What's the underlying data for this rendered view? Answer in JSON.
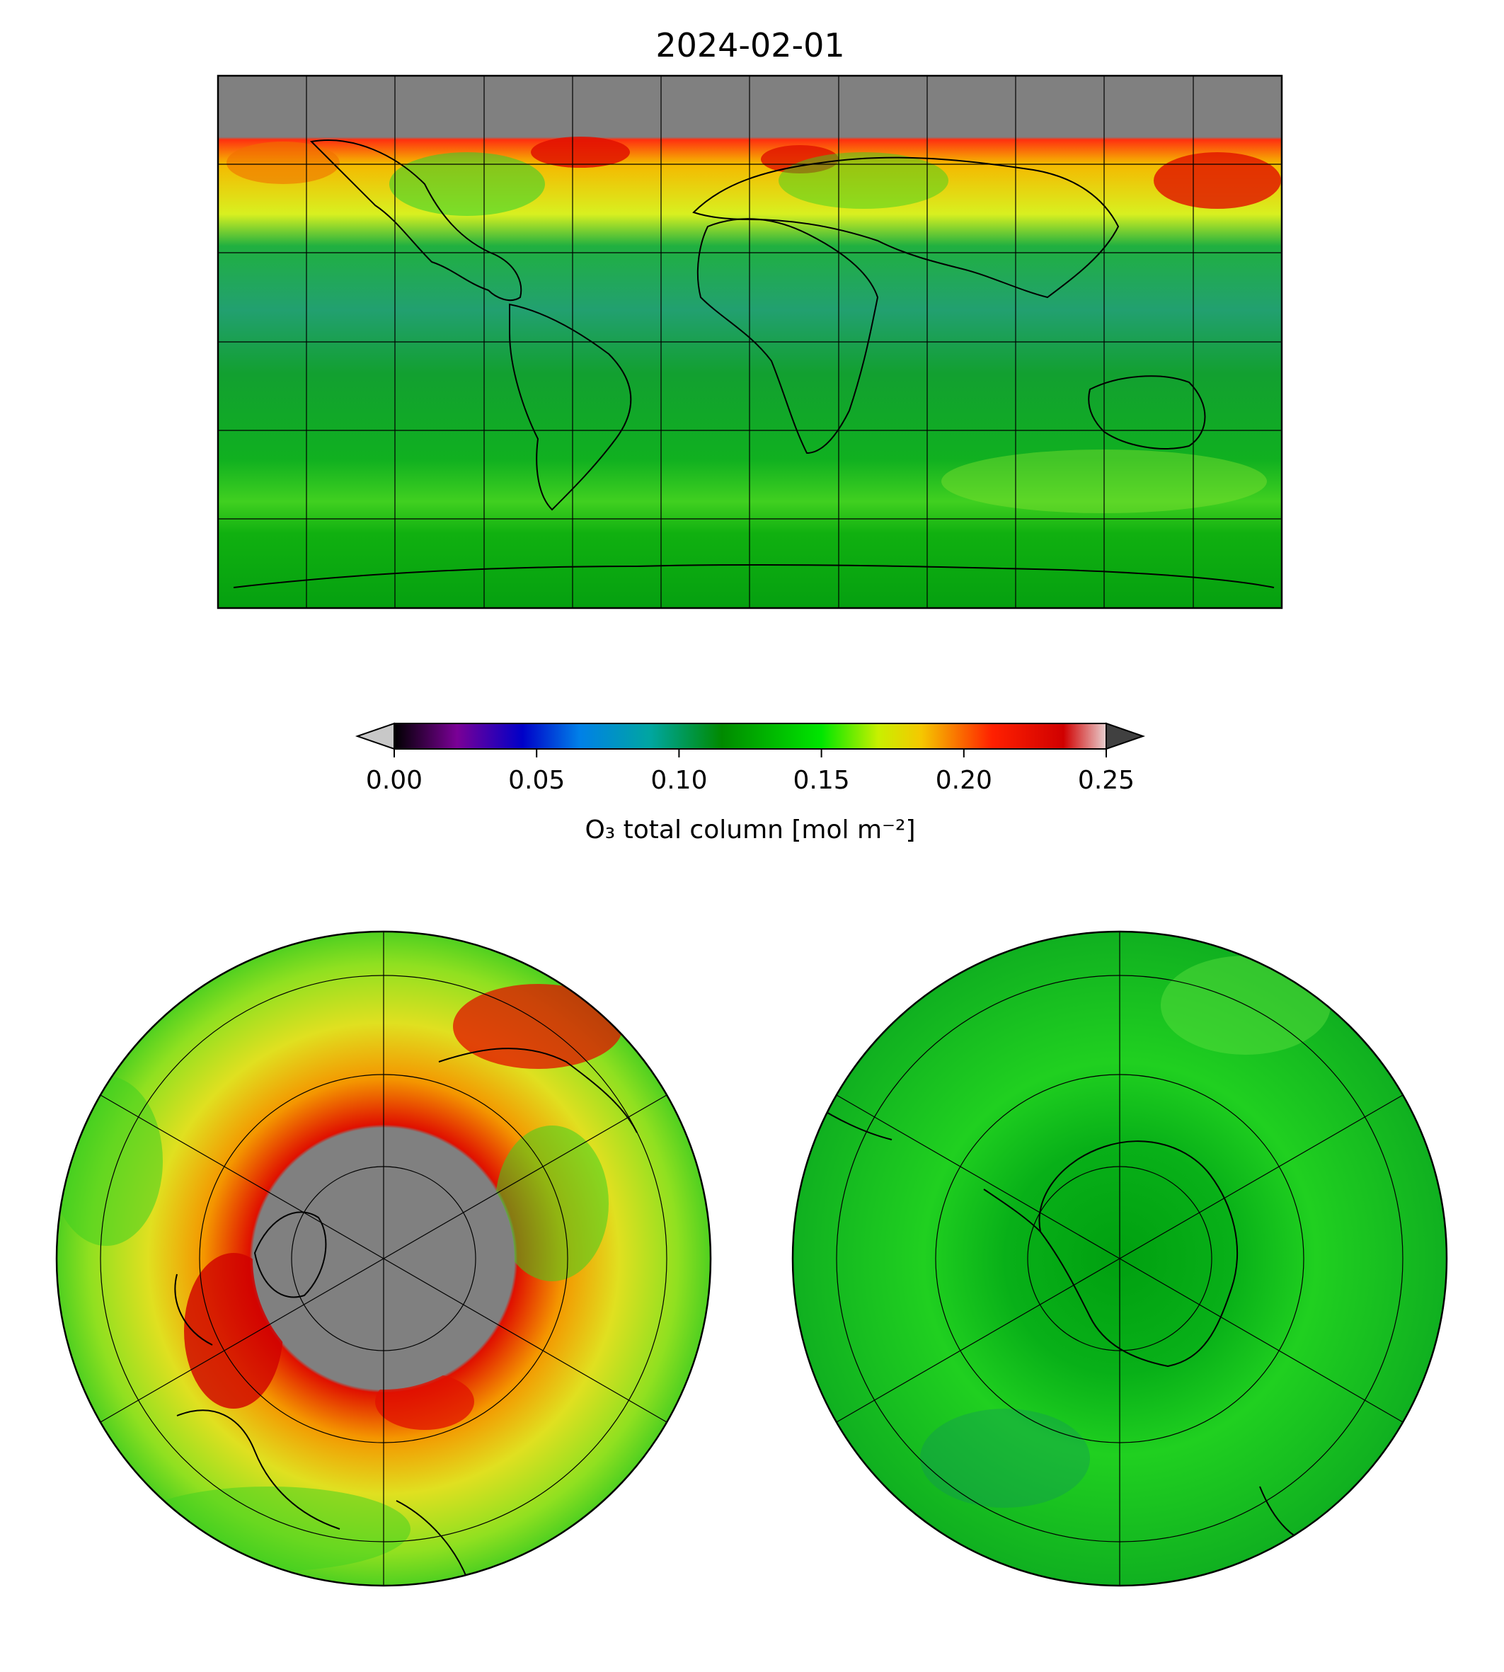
{
  "figure": {
    "title": "2024-02-01"
  },
  "colorbar": {
    "label": "O₃ total column [mol m⁻²]",
    "range": [
      0.0,
      0.25
    ],
    "extend": "both",
    "ticks": [
      "0.00",
      "0.05",
      "0.10",
      "0.15",
      "0.20",
      "0.25"
    ],
    "tick_values": [
      0.0,
      0.05,
      0.1,
      0.15,
      0.2,
      0.25
    ],
    "colormap_stops": [
      {
        "value": 0.0,
        "color": "#000000"
      },
      {
        "value": 0.022,
        "color": "#7a0096"
      },
      {
        "value": 0.045,
        "color": "#0000c8"
      },
      {
        "value": 0.065,
        "color": "#0080e8"
      },
      {
        "value": 0.09,
        "color": "#00a6a0"
      },
      {
        "value": 0.115,
        "color": "#008a00"
      },
      {
        "value": 0.15,
        "color": "#00e600"
      },
      {
        "value": 0.17,
        "color": "#c8f000"
      },
      {
        "value": 0.185,
        "color": "#f5c800"
      },
      {
        "value": 0.21,
        "color": "#ff2000"
      },
      {
        "value": 0.235,
        "color": "#d00000"
      },
      {
        "value": 0.25,
        "color": "#e8d0d0"
      }
    ],
    "under_color": "#c8c8c8",
    "over_color": "#404040"
  },
  "maps": {
    "global": {
      "projection": "plate carree",
      "missing_color": "#808080",
      "gridlines": "30 degree graticule"
    },
    "north_polar": {
      "projection": "north polar stereographic",
      "missing_color": "#808080"
    },
    "south_polar": {
      "projection": "south polar stereographic"
    }
  }
}
